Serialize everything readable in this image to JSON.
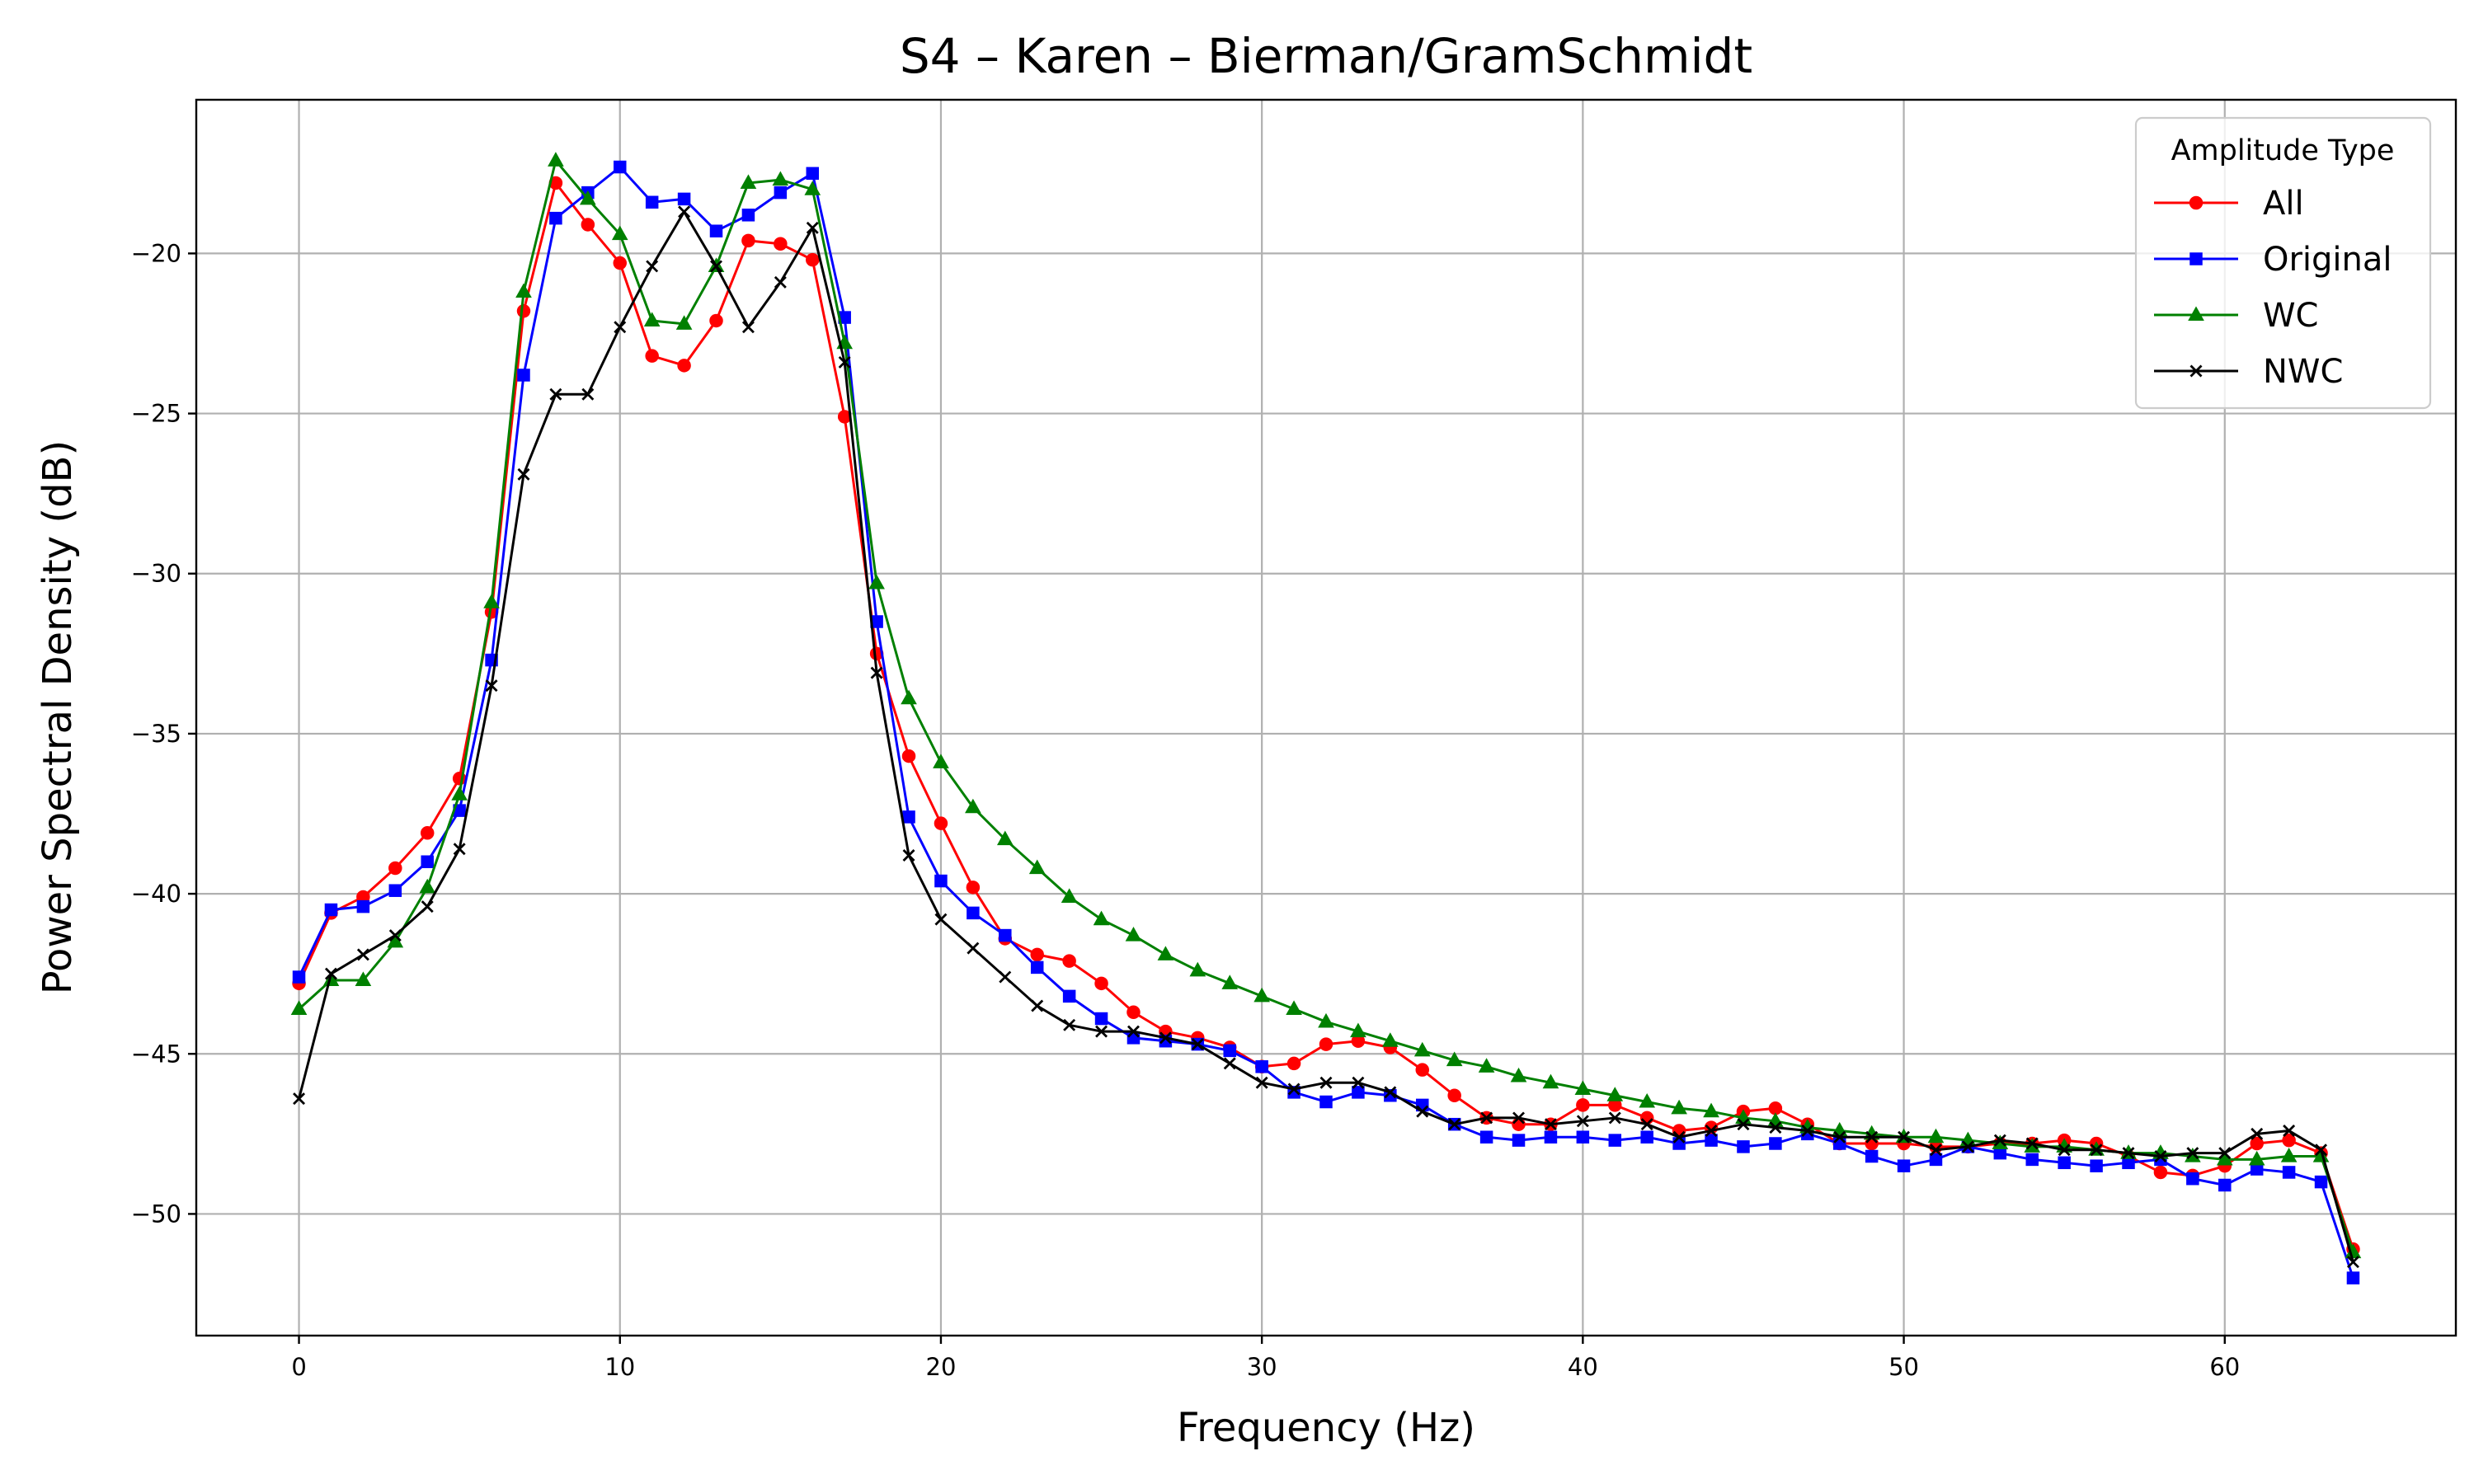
{
  "chart_data": {
    "type": "line",
    "title": "S4 – Karen – Bierman/GramSchmidt",
    "xlabel": "Frequency (Hz)",
    "ylabel": "Power Spectral Density (dB)",
    "xlim": [
      -3.2,
      67.2
    ],
    "ylim": [
      -53.8,
      -15.2
    ],
    "xticks": [
      0,
      10,
      20,
      30,
      40,
      50,
      60
    ],
    "yticks": [
      -50,
      -45,
      -40,
      -35,
      -30,
      -25,
      -20
    ],
    "xtick_labels": [
      "0",
      "10",
      "20",
      "30",
      "40",
      "50",
      "60"
    ],
    "ytick_labels": [
      "−50",
      "−45",
      "−40",
      "−35",
      "−30",
      "−25",
      "−20"
    ],
    "grid": true,
    "legend": {
      "title": "Amplitude Type",
      "placement": "top-right"
    },
    "x": [
      0,
      1,
      2,
      3,
      4,
      5,
      6,
      7,
      8,
      9,
      10,
      11,
      12,
      13,
      14,
      15,
      16,
      17,
      18,
      19,
      20,
      21,
      22,
      23,
      24,
      25,
      26,
      27,
      28,
      29,
      30,
      31,
      32,
      33,
      34,
      35,
      36,
      37,
      38,
      39,
      40,
      41,
      42,
      43,
      44,
      45,
      46,
      47,
      48,
      49,
      50,
      51,
      52,
      53,
      54,
      55,
      56,
      57,
      58,
      59,
      60,
      61,
      62,
      63,
      64
    ],
    "series": [
      {
        "name": "All",
        "color": "#ff0000",
        "marker": "circle",
        "values": [
          -42.8,
          -40.6,
          -40.1,
          -39.2,
          -38.1,
          -36.4,
          -31.2,
          -21.8,
          -17.8,
          -19.1,
          -20.3,
          -23.2,
          -23.5,
          -22.1,
          -19.6,
          -19.7,
          -20.2,
          -25.1,
          -32.5,
          -35.7,
          -37.8,
          -39.8,
          -41.4,
          -41.9,
          -42.1,
          -42.8,
          -43.7,
          -44.3,
          -44.5,
          -44.8,
          -45.4,
          -45.3,
          -44.7,
          -44.6,
          -44.8,
          -45.5,
          -46.3,
          -47.0,
          -47.2,
          -47.2,
          -46.6,
          -46.6,
          -47.0,
          -47.4,
          -47.3,
          -46.8,
          -46.7,
          -47.2,
          -47.8,
          -47.8,
          -47.8,
          -47.9,
          -47.9,
          -47.8,
          -47.8,
          -47.7,
          -47.8,
          -48.2,
          -48.7,
          -48.8,
          -48.5,
          -47.8,
          -47.7,
          -48.1,
          -51.1
        ]
      },
      {
        "name": "Original",
        "color": "#0000ff",
        "marker": "square",
        "values": [
          -42.6,
          -40.5,
          -40.4,
          -39.9,
          -39.0,
          -37.4,
          -32.7,
          -23.8,
          -18.9,
          -18.1,
          -17.3,
          -18.4,
          -18.3,
          -19.3,
          -18.8,
          -18.1,
          -17.5,
          -22.0,
          -31.5,
          -37.6,
          -39.6,
          -40.6,
          -41.3,
          -42.3,
          -43.2,
          -43.9,
          -44.5,
          -44.6,
          -44.7,
          -44.9,
          -45.4,
          -46.2,
          -46.5,
          -46.2,
          -46.3,
          -46.6,
          -47.2,
          -47.6,
          -47.7,
          -47.6,
          -47.6,
          -47.7,
          -47.6,
          -47.8,
          -47.7,
          -47.9,
          -47.8,
          -47.5,
          -47.8,
          -48.2,
          -48.5,
          -48.3,
          -47.9,
          -48.1,
          -48.3,
          -48.4,
          -48.5,
          -48.4,
          -48.3,
          -48.9,
          -49.1,
          -48.6,
          -48.7,
          -49.0,
          -52.0
        ]
      },
      {
        "name": "WC",
        "color": "#008000",
        "marker": "triangle",
        "values": [
          -43.6,
          -42.7,
          -42.7,
          -41.5,
          -39.8,
          -36.9,
          -30.9,
          -21.2,
          -17.1,
          -18.3,
          -19.4,
          -22.1,
          -22.2,
          -20.4,
          -17.8,
          -17.7,
          -18.0,
          -22.8,
          -30.3,
          -33.9,
          -35.9,
          -37.3,
          -38.3,
          -39.2,
          -40.1,
          -40.8,
          -41.3,
          -41.9,
          -42.4,
          -42.8,
          -43.2,
          -43.6,
          -44.0,
          -44.3,
          -44.6,
          -44.9,
          -45.2,
          -45.4,
          -45.7,
          -45.9,
          -46.1,
          -46.3,
          -46.5,
          -46.7,
          -46.8,
          -47.0,
          -47.1,
          -47.3,
          -47.4,
          -47.5,
          -47.6,
          -47.6,
          -47.7,
          -47.8,
          -47.9,
          -47.9,
          -48.0,
          -48.1,
          -48.1,
          -48.2,
          -48.3,
          -48.3,
          -48.2,
          -48.2,
          -51.2
        ]
      },
      {
        "name": "NWC",
        "color": "#000000",
        "marker": "x",
        "values": [
          -46.4,
          -42.5,
          -41.9,
          -41.3,
          -40.4,
          -38.6,
          -33.5,
          -26.9,
          -24.4,
          -24.4,
          -22.3,
          -20.4,
          -18.7,
          -20.4,
          -22.3,
          -20.9,
          -19.2,
          -23.4,
          -33.1,
          -38.8,
          -40.8,
          -41.7,
          -42.6,
          -43.5,
          -44.1,
          -44.3,
          -44.3,
          -44.5,
          -44.7,
          -45.3,
          -45.9,
          -46.1,
          -45.9,
          -45.9,
          -46.2,
          -46.8,
          -47.2,
          -47.0,
          -47.0,
          -47.2,
          -47.1,
          -47.0,
          -47.2,
          -47.6,
          -47.4,
          -47.2,
          -47.3,
          -47.4,
          -47.6,
          -47.6,
          -47.6,
          -48.0,
          -47.9,
          -47.7,
          -47.8,
          -48.0,
          -48.0,
          -48.1,
          -48.2,
          -48.1,
          -48.1,
          -47.5,
          -47.4,
          -48.0,
          -51.5
        ]
      }
    ]
  }
}
